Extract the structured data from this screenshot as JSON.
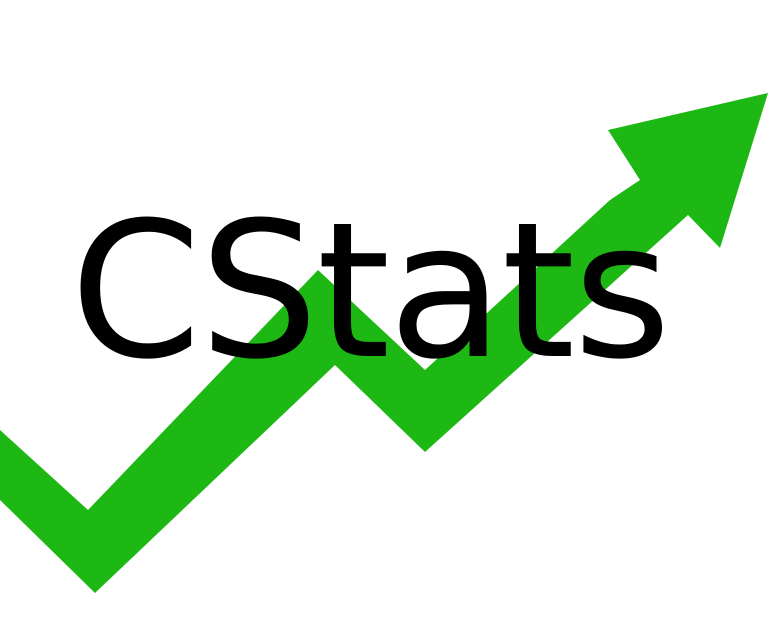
{
  "logo": {
    "text": "CStats",
    "icon": "trend-up-arrow-icon",
    "colors": {
      "arrow": "#1db814",
      "text": "#000000",
      "background": "#ffffff"
    }
  }
}
